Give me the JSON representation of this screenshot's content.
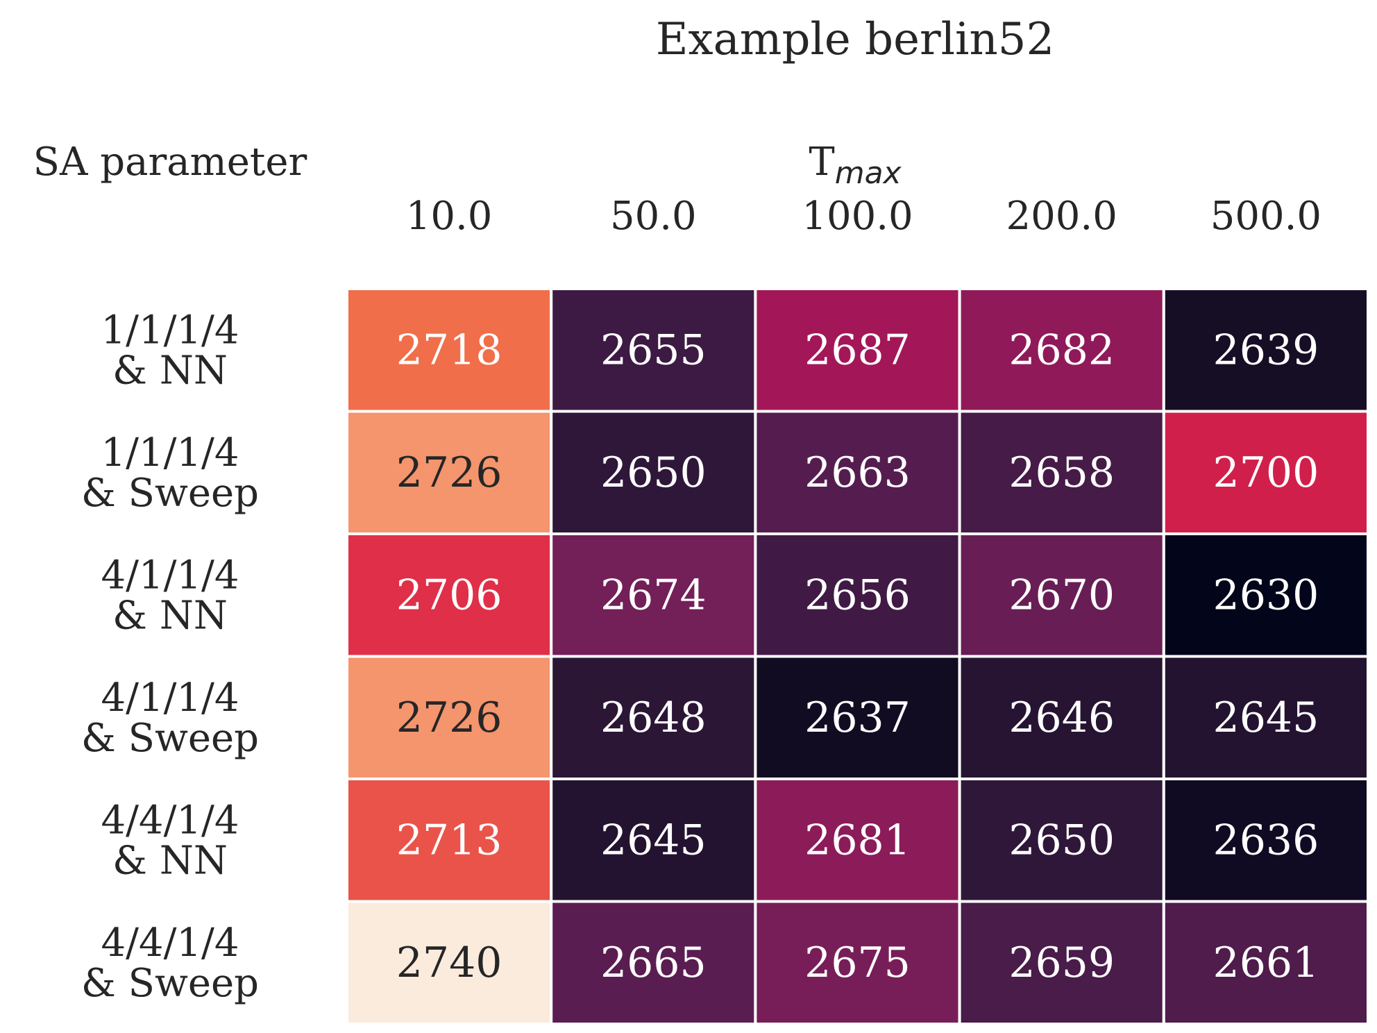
{
  "chart_data": {
    "type": "heatmap",
    "title": "Example berlin52",
    "row_header": "SA parameter",
    "col_header": {
      "main": "T",
      "sub": "max"
    },
    "columns": [
      "10.0",
      "50.0",
      "100.0",
      "200.0",
      "500.0"
    ],
    "rows": [
      {
        "line1": "1/1/1/4",
        "line2": "& NN"
      },
      {
        "line1": "1/1/1/4",
        "line2": "& Sweep"
      },
      {
        "line1": "4/1/1/4",
        "line2": "& NN"
      },
      {
        "line1": "4/1/1/4",
        "line2": "& Sweep"
      },
      {
        "line1": "4/4/1/4",
        "line2": "& NN"
      },
      {
        "line1": "4/4/1/4",
        "line2": "& Sweep"
      }
    ],
    "values": [
      [
        2718,
        2655,
        2687,
        2682,
        2639
      ],
      [
        2726,
        2650,
        2663,
        2658,
        2700
      ],
      [
        2706,
        2674,
        2656,
        2670,
        2630
      ],
      [
        2726,
        2648,
        2637,
        2646,
        2645
      ],
      [
        2713,
        2645,
        2681,
        2650,
        2636
      ],
      [
        2740,
        2665,
        2675,
        2659,
        2661
      ]
    ],
    "colormap": "rocket",
    "vmin": 2630,
    "vmax": 2740,
    "cell_border_color": "#ffffff",
    "colorbar": false,
    "grid": false
  }
}
